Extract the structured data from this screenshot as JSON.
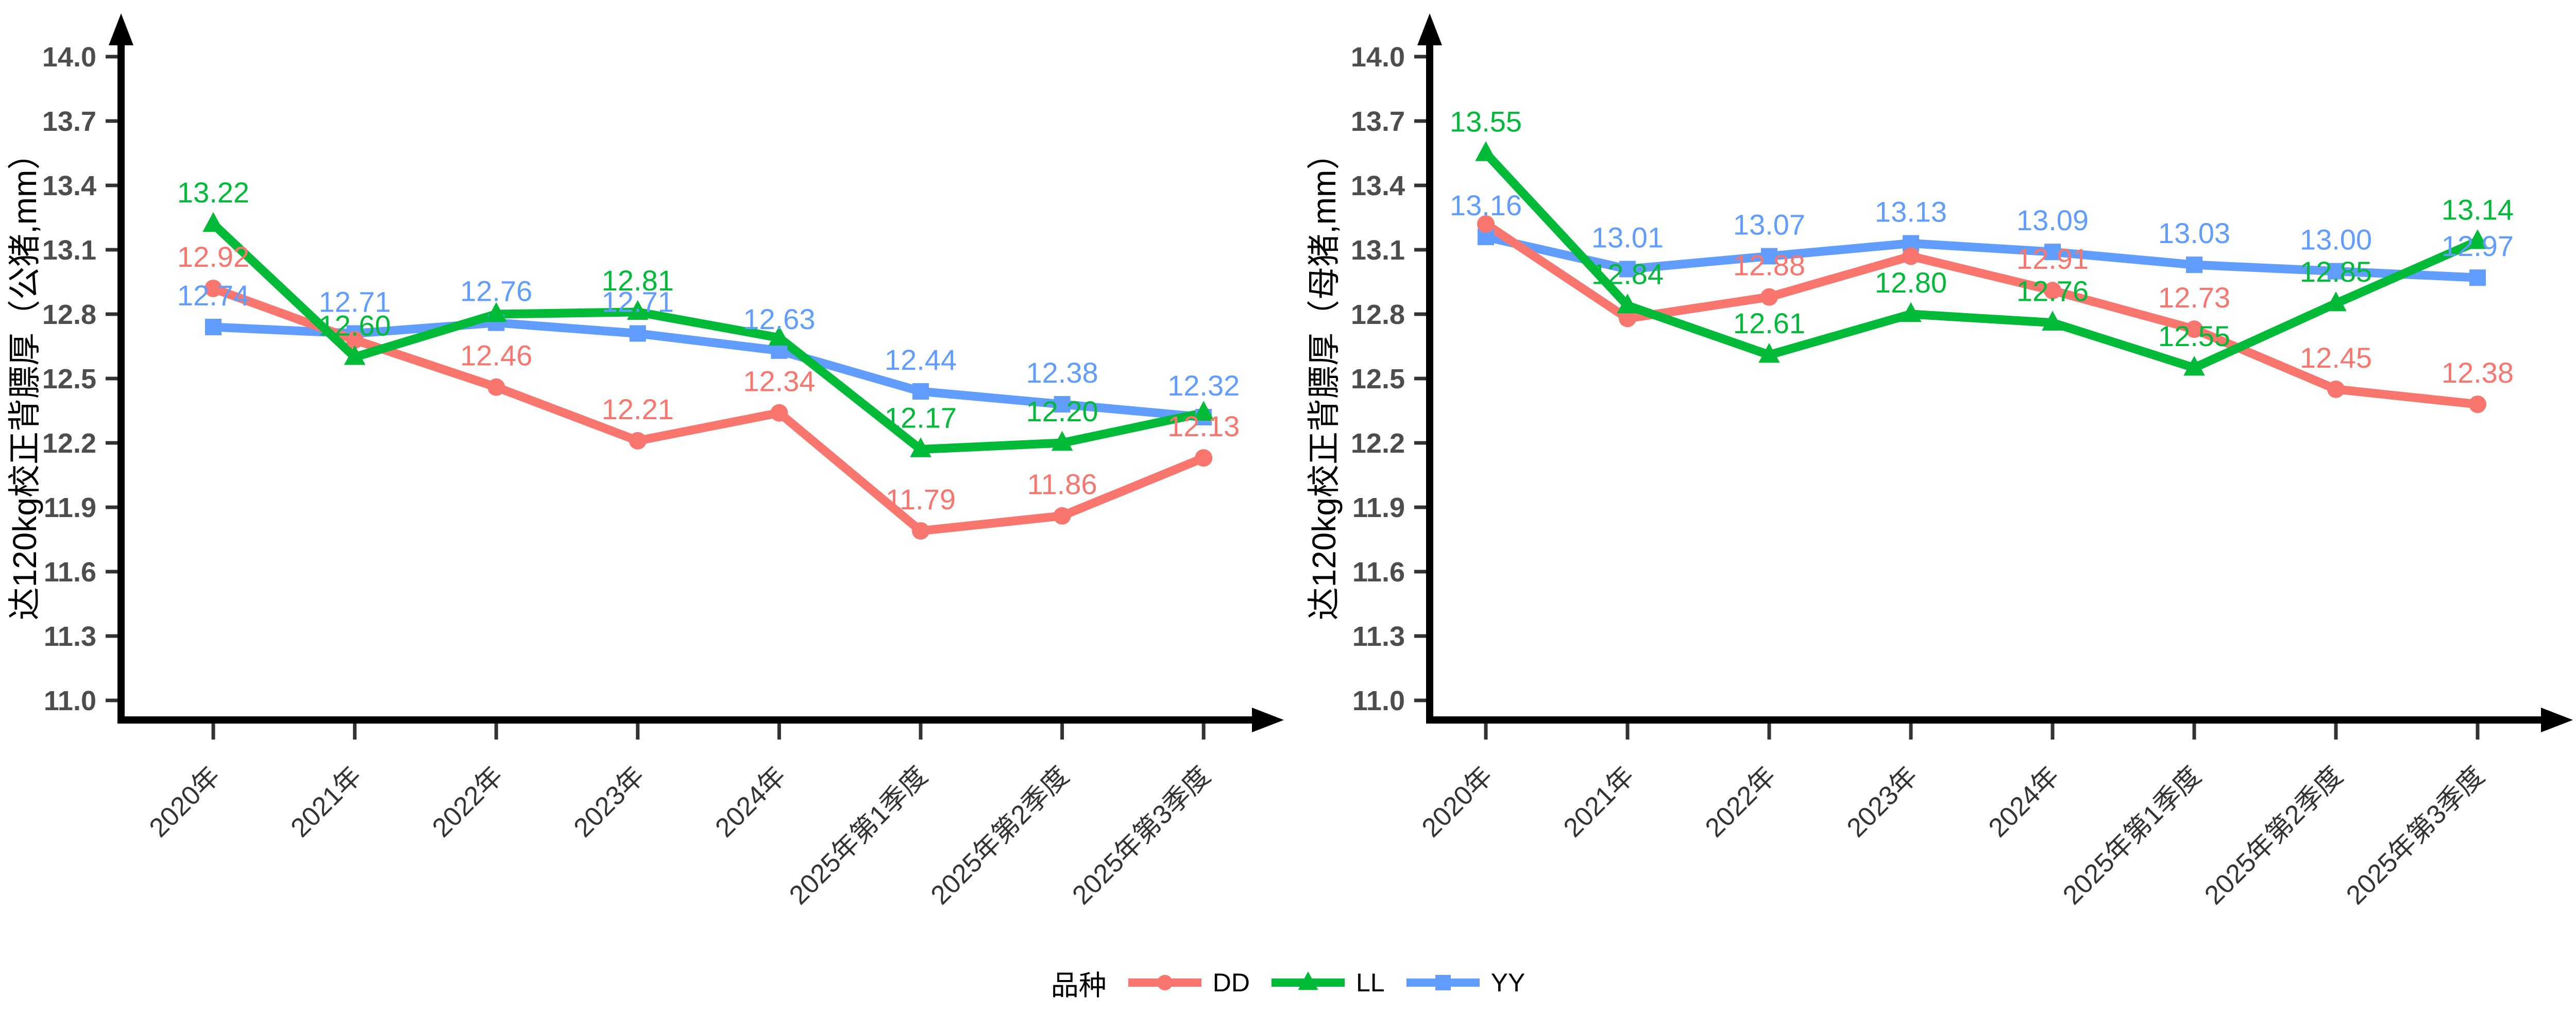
{
  "page": {
    "background": "#ffffff"
  },
  "colors": {
    "DD": "#F8766D",
    "LL": "#00BA38",
    "YY": "#619CFF",
    "axis_line": "#000000",
    "ytick_text": "#4d4d4d",
    "xtick_text": "#333333",
    "axis_title_text": "#000000"
  },
  "legend": {
    "title": "品种",
    "position": "bottom",
    "items": [
      {
        "label": "DD",
        "color": "#F8766D",
        "marker": "circle"
      },
      {
        "label": "LL",
        "color": "#00BA38",
        "marker": "triangle"
      },
      {
        "label": "YY",
        "color": "#619CFF",
        "marker": "square"
      }
    ]
  },
  "chart_data": [
    {
      "type": "line",
      "title": "",
      "xlabel": "",
      "ylabel": "达120kg校正背膘厚（公猪,mm）",
      "categories": [
        "2020年",
        "2021年",
        "2022年",
        "2023年",
        "2024年",
        "2025年第1季度",
        "2025年第2季度",
        "2025年第3季度"
      ],
      "yticks": [
        "14.0",
        "13.7",
        "13.4",
        "13.1",
        "12.8",
        "12.5",
        "12.2",
        "11.9",
        "11.6",
        "11.3",
        "11.0"
      ],
      "ylim": [
        11.0,
        14.0
      ],
      "grid": false,
      "series": [
        {
          "name": "DD",
          "color": "#F8766D",
          "marker": "circle",
          "zindex": 1,
          "values": [
            12.92,
            12.68,
            12.46,
            12.21,
            12.34,
            11.79,
            11.86,
            12.13
          ],
          "labels": [
            "12.92",
            null,
            "12.46",
            "12.21",
            "12.34",
            "11.79",
            "11.86",
            "12.13"
          ]
        },
        {
          "name": "LL",
          "color": "#00BA38",
          "marker": "triangle",
          "zindex": 2,
          "values": [
            13.22,
            12.6,
            12.8,
            12.81,
            12.69,
            12.17,
            12.2,
            12.34
          ],
          "labels": [
            "13.22",
            "12.60",
            null,
            "12.81",
            null,
            "12.17",
            "12.20",
            null
          ]
        },
        {
          "name": "YY",
          "color": "#619CFF",
          "marker": "square",
          "zindex": 0,
          "values": [
            12.74,
            12.71,
            12.76,
            12.71,
            12.63,
            12.44,
            12.38,
            12.32
          ],
          "labels": [
            "12.74",
            "12.71",
            "12.76",
            "12.71",
            "12.63",
            "12.44",
            "12.38",
            "12.32"
          ]
        }
      ]
    },
    {
      "type": "line",
      "title": "",
      "xlabel": "",
      "ylabel": "达120kg校正背膘厚（母猪,mm）",
      "categories": [
        "2020年",
        "2021年",
        "2022年",
        "2023年",
        "2024年",
        "2025年第1季度",
        "2025年第2季度",
        "2025年第3季度"
      ],
      "yticks": [
        "14.0",
        "13.7",
        "13.4",
        "13.1",
        "12.8",
        "12.5",
        "12.2",
        "11.9",
        "11.6",
        "11.3",
        "11.0"
      ],
      "ylim": [
        11.0,
        14.0
      ],
      "grid": false,
      "series": [
        {
          "name": "DD",
          "color": "#F8766D",
          "marker": "circle",
          "zindex": 1,
          "values": [
            13.22,
            12.78,
            12.88,
            13.07,
            12.91,
            12.73,
            12.45,
            12.38
          ],
          "labels": [
            null,
            null,
            "12.88",
            null,
            "12.91",
            "12.73",
            "12.45",
            "12.38"
          ]
        },
        {
          "name": "LL",
          "color": "#00BA38",
          "marker": "triangle",
          "zindex": 2,
          "values": [
            13.55,
            12.84,
            12.61,
            12.8,
            12.76,
            12.55,
            12.85,
            13.14
          ],
          "labels": [
            "13.55",
            "12.84",
            "12.61",
            "12.80",
            "12.76",
            "12.55",
            "12.85",
            "13.14"
          ]
        },
        {
          "name": "YY",
          "color": "#619CFF",
          "marker": "square",
          "zindex": 0,
          "values": [
            13.16,
            13.01,
            13.07,
            13.13,
            13.09,
            13.03,
            13.0,
            12.97
          ],
          "labels": [
            "13.16",
            "13.01",
            "13.07",
            "13.13",
            "13.09",
            "13.03",
            "13.00",
            "12.97"
          ]
        }
      ]
    }
  ]
}
